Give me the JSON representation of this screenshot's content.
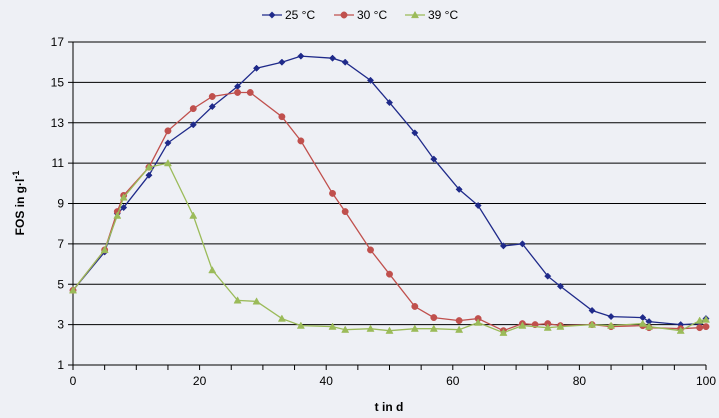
{
  "chart_data": {
    "type": "line",
    "xlabel": "t in d",
    "ylabel_main": "FOS in g·l",
    "ylabel_sup": "-1",
    "xlim": [
      0,
      100
    ],
    "ylim": [
      1,
      17
    ],
    "xticks": [
      0,
      20,
      40,
      60,
      80,
      100
    ],
    "yticks": [
      1,
      3,
      5,
      7,
      9,
      11,
      13,
      15,
      17
    ],
    "grid": "horizontal",
    "legend_position": "top-center",
    "series": [
      {
        "name": "25 °C",
        "color": "#1f2a8a",
        "marker": "diamond",
        "x": [
          0,
          5,
          7,
          8,
          12,
          15,
          19,
          22,
          26,
          29,
          33,
          36,
          41,
          43,
          47,
          50,
          54,
          57,
          61,
          64,
          68,
          71,
          75,
          77,
          82,
          85,
          90,
          91,
          96,
          99,
          100
        ],
        "y": [
          4.7,
          6.6,
          8.5,
          8.8,
          10.4,
          12.0,
          12.9,
          13.8,
          14.8,
          15.7,
          16.0,
          16.3,
          16.2,
          16.0,
          15.1,
          14.0,
          12.5,
          11.2,
          9.7,
          8.9,
          6.9,
          7.0,
          5.4,
          4.9,
          3.7,
          3.4,
          3.35,
          3.15,
          3.0,
          3.05,
          3.3
        ]
      },
      {
        "name": "30 °C",
        "color": "#c0504d",
        "marker": "circle",
        "x": [
          0,
          5,
          7,
          8,
          12,
          15,
          19,
          22,
          26,
          28,
          33,
          36,
          41,
          43,
          47,
          50,
          54,
          57,
          61,
          64,
          68,
          71,
          73,
          75,
          77,
          82,
          85,
          90,
          91,
          96,
          99,
          100
        ],
        "y": [
          4.7,
          6.7,
          8.6,
          9.4,
          10.8,
          12.6,
          13.7,
          14.3,
          14.5,
          14.5,
          13.3,
          12.1,
          9.5,
          8.6,
          6.7,
          5.5,
          3.9,
          3.35,
          3.2,
          3.3,
          2.7,
          3.05,
          3.0,
          3.05,
          2.95,
          3.0,
          2.9,
          2.95,
          2.85,
          2.8,
          2.85,
          2.9
        ]
      },
      {
        "name": "39 °C",
        "color": "#9bbb59",
        "marker": "triangle",
        "x": [
          0,
          5,
          7,
          8,
          12,
          15,
          19,
          22,
          26,
          29,
          33,
          36,
          41,
          43,
          47,
          50,
          54,
          57,
          61,
          64,
          68,
          71,
          75,
          77,
          82,
          85,
          90,
          91,
          96,
          99,
          100
        ],
        "y": [
          4.7,
          6.7,
          8.4,
          9.3,
          10.8,
          11.0,
          8.4,
          5.7,
          4.2,
          4.15,
          3.3,
          2.95,
          2.9,
          2.75,
          2.8,
          2.7,
          2.8,
          2.8,
          2.75,
          3.1,
          2.6,
          2.95,
          2.85,
          2.9,
          3.0,
          2.95,
          3.05,
          2.9,
          2.7,
          3.2,
          3.25
        ]
      }
    ]
  }
}
